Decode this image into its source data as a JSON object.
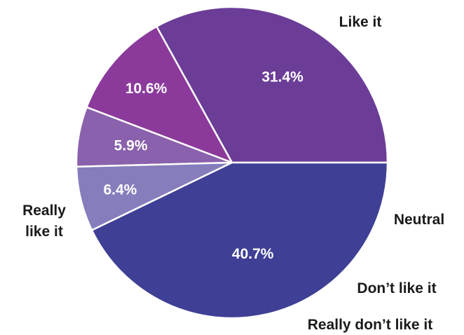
{
  "chart_data": {
    "type": "pie",
    "title": "",
    "slices": [
      {
        "category": "Like it",
        "value": 31.4,
        "value_label": "31.4%",
        "label_lines": [
          "Like it"
        ],
        "color": "#6B3D97"
      },
      {
        "category": "Neutral",
        "value": 10.6,
        "value_label": "10.6%",
        "label_lines": [
          "Neutral"
        ],
        "color": "#8B3A9C"
      },
      {
        "category": "Don’t like it",
        "value": 5.9,
        "value_label": "5.9%",
        "label_lines": [
          "Don’t like it"
        ],
        "color": "#8A61AC"
      },
      {
        "category": "Really don’t like it",
        "value": 6.4,
        "value_label": "6.4%",
        "label_lines": [
          "Really don’t like it"
        ],
        "color": "#857DBC"
      },
      {
        "category": "Really like it",
        "value": 40.7,
        "value_label": "40.7%",
        "label_lines": [
          "Really",
          "like it"
        ],
        "color": "#3F3F96"
      }
    ],
    "start": "3 o'clock",
    "direction": "counterclockwise",
    "legend": "none"
  }
}
